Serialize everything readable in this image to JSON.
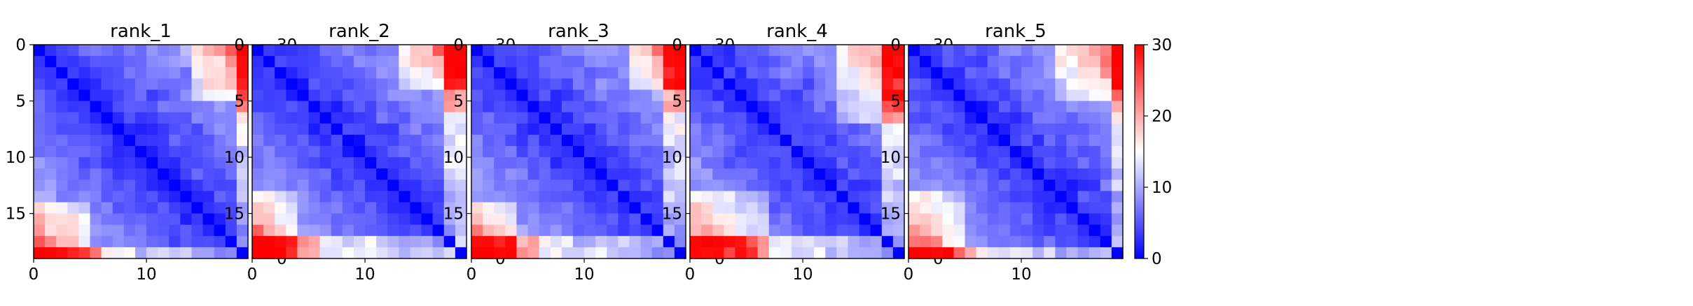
{
  "chart_data": [
    {
      "type": "heatmap",
      "title": "rank_1",
      "rows": 19,
      "cols": 19,
      "xticks": [
        0,
        10
      ],
      "yticks": [
        0,
        5,
        10,
        15
      ],
      "colorbar": {
        "ticks": [
          0,
          10,
          20,
          30
        ],
        "range": [
          0,
          30
        ],
        "colormap": "bwr"
      },
      "edge_rows": [
        18
      ],
      "edge_cols": [
        18
      ],
      "hot_zones": [
        {
          "rowMax": 4,
          "colMin": 14,
          "boost": 13
        }
      ],
      "seed": 1
    },
    {
      "type": "heatmap",
      "title": "rank_2",
      "rows": 19,
      "cols": 19,
      "xticks": [
        0,
        10
      ],
      "yticks": [
        0,
        5,
        10,
        15
      ],
      "colorbar": {
        "ticks": [
          0,
          10,
          20,
          30
        ],
        "range": [
          0,
          30
        ],
        "colormap": "bwr"
      },
      "edge_rows": [
        17,
        18
      ],
      "edge_cols": [
        17,
        18
      ],
      "hot_zones": [
        {
          "rowMax": 3,
          "colMin": 13,
          "boost": 13
        }
      ],
      "seed": 2
    },
    {
      "type": "heatmap",
      "title": "rank_3",
      "rows": 19,
      "cols": 19,
      "xticks": [
        0,
        10
      ],
      "yticks": [
        0,
        5,
        10,
        15
      ],
      "colorbar": {
        "ticks": [
          0,
          10,
          20,
          30
        ],
        "range": [
          0,
          30
        ],
        "colormap": "bwr"
      },
      "edge_rows": [
        17,
        18
      ],
      "edge_cols": [
        18
      ],
      "hot_zones": [
        {
          "rowMax": 3,
          "colMin": 14,
          "boost": 14
        }
      ],
      "seed": 3
    },
    {
      "type": "heatmap",
      "title": "rank_4",
      "rows": 19,
      "cols": 19,
      "xticks": [
        0,
        10
      ],
      "yticks": [
        0,
        5,
        10,
        15
      ],
      "colorbar": {
        "ticks": [
          0,
          10,
          20,
          30
        ],
        "range": [
          0,
          30
        ],
        "colormap": "bwr"
      },
      "edge_rows": [
        17,
        18
      ],
      "edge_cols": [
        18
      ],
      "hot_zones": [
        {
          "rowMax": 6,
          "colMin": 13,
          "boost": 12
        }
      ],
      "seed": 4
    },
    {
      "type": "heatmap",
      "title": "rank_5",
      "rows": 19,
      "cols": 19,
      "xticks": [
        0,
        10
      ],
      "yticks": [
        0,
        5,
        10,
        15
      ],
      "colorbar": {
        "ticks": [
          0,
          10,
          20,
          30
        ],
        "range": [
          0,
          30
        ],
        "colormap": "bwr"
      },
      "edge_rows": [
        18
      ],
      "edge_cols": [
        18
      ],
      "hot_zones": [
        {
          "rowMax": 4,
          "colMin": 13,
          "boost": 13
        }
      ],
      "seed": 5
    }
  ]
}
